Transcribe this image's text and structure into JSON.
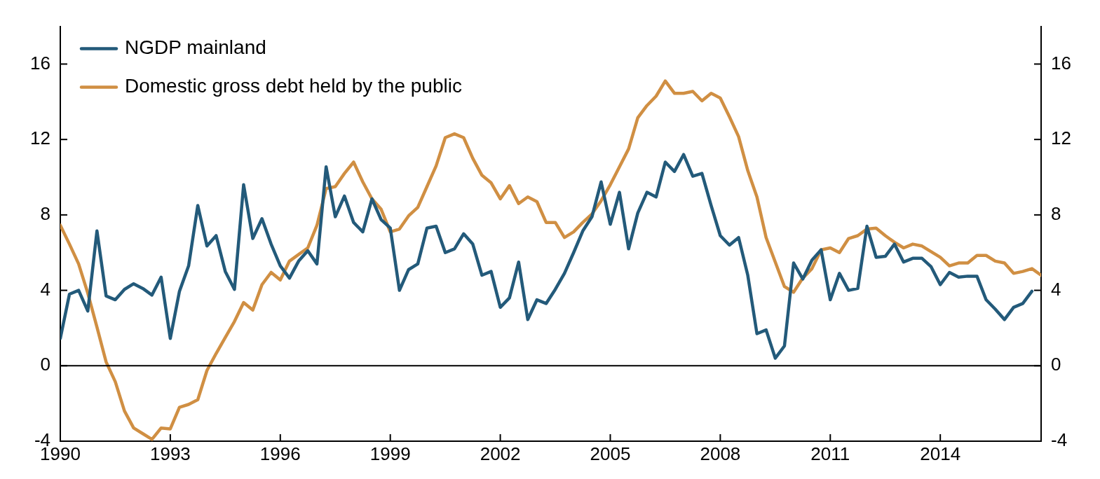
{
  "chart_data": {
    "type": "line",
    "x": [
      1990,
      1990.25,
      1990.5,
      1990.75,
      1991,
      1991.25,
      1991.5,
      1991.75,
      1992,
      1992.25,
      1992.5,
      1992.75,
      1993,
      1993.25,
      1993.5,
      1993.75,
      1994,
      1994.25,
      1994.5,
      1994.75,
      1995,
      1995.25,
      1995.5,
      1995.75,
      1996,
      1996.25,
      1996.5,
      1996.75,
      1997,
      1997.25,
      1997.5,
      1997.75,
      1998,
      1998.25,
      1998.5,
      1998.75,
      1999,
      1999.25,
      1999.5,
      1999.75,
      2000,
      2000.25,
      2000.5,
      2000.75,
      2001,
      2001.25,
      2001.5,
      2001.75,
      2002,
      2002.25,
      2002.5,
      2002.75,
      2003,
      2003.25,
      2003.5,
      2003.75,
      2004,
      2004.25,
      2004.5,
      2004.75,
      2005,
      2005.25,
      2005.5,
      2005.75,
      2006,
      2006.25,
      2006.5,
      2006.75,
      2007,
      2007.25,
      2007.5,
      2007.75,
      2008,
      2008.25,
      2008.5,
      2008.75,
      2009,
      2009.25,
      2009.5,
      2009.75,
      2010,
      2010.25,
      2010.5,
      2010.75,
      2011,
      2011.25,
      2011.5,
      2011.75,
      2012,
      2012.25,
      2012.5,
      2012.75,
      2013,
      2013.25,
      2013.5,
      2013.75,
      2014,
      2014.25,
      2014.5,
      2014.75,
      2015,
      2015.25,
      2015.5,
      2015.75,
      2016,
      2016.25,
      2016.5,
      2016.75
    ],
    "series": [
      {
        "name": "NGDP mainland",
        "color": "#235a7a",
        "values": [
          1.45,
          3.8,
          4.0,
          2.9,
          7.15,
          3.7,
          3.5,
          4.05,
          4.35,
          4.1,
          3.75,
          4.7,
          1.45,
          3.95,
          5.3,
          8.5,
          6.35,
          6.9,
          5.0,
          4.05,
          9.6,
          6.75,
          7.8,
          6.45,
          5.3,
          4.65,
          5.55,
          6.1,
          5.4,
          10.55,
          7.9,
          9.0,
          7.6,
          7.1,
          8.85,
          7.75,
          7.3,
          4.0,
          5.1,
          5.4,
          7.3,
          7.4,
          6.0,
          6.2,
          7.0,
          6.45,
          4.8,
          5.0,
          3.1,
          3.6,
          5.5,
          2.45,
          3.5,
          3.3,
          4.05,
          4.9,
          6.0,
          7.15,
          7.9,
          9.75,
          7.5,
          9.2,
          6.2,
          8.1,
          9.2,
          8.95,
          10.8,
          10.3,
          11.2,
          10.05,
          10.2,
          8.5,
          6.9,
          6.4,
          6.8,
          4.8,
          1.7,
          1.9,
          0.4,
          1.05,
          5.45,
          4.6,
          5.6,
          6.15,
          3.5,
          4.9,
          4.0,
          4.1,
          7.4,
          5.75,
          5.8,
          6.45,
          5.5,
          5.7,
          5.7,
          5.25,
          4.3,
          4.95,
          4.7,
          4.75,
          4.75,
          3.5,
          3.0,
          2.45,
          3.1,
          3.3,
          3.95,
          null
        ]
      },
      {
        "name": "Domestic gross debt held by the public",
        "color": "#d08f43",
        "values": [
          7.45,
          6.45,
          5.4,
          3.85,
          2.05,
          0.2,
          -0.85,
          -2.4,
          -3.3,
          -3.6,
          -3.9,
          -3.3,
          -3.35,
          -2.2,
          -2.05,
          -1.8,
          -0.25,
          0.65,
          1.5,
          2.35,
          3.35,
          2.95,
          4.3,
          4.95,
          4.55,
          5.55,
          5.9,
          6.25,
          7.45,
          9.4,
          9.5,
          10.2,
          10.8,
          9.75,
          8.85,
          8.3,
          7.1,
          7.25,
          7.95,
          8.4,
          9.5,
          10.6,
          12.1,
          12.3,
          12.1,
          11.0,
          10.1,
          9.7,
          8.85,
          9.55,
          8.6,
          8.95,
          8.7,
          7.6,
          7.6,
          6.8,
          7.1,
          7.6,
          8.05,
          8.75,
          9.6,
          10.55,
          11.5,
          13.15,
          13.8,
          14.3,
          15.1,
          14.45,
          14.45,
          14.55,
          14.05,
          14.45,
          14.2,
          13.2,
          12.15,
          10.35,
          8.95,
          6.8,
          5.5,
          4.2,
          3.9,
          4.65,
          5.15,
          6.15,
          6.25,
          6.0,
          6.75,
          6.9,
          7.25,
          7.3,
          6.9,
          6.55,
          6.25,
          6.45,
          6.35,
          6.05,
          5.75,
          5.3,
          5.45,
          5.45,
          5.85,
          5.85,
          5.55,
          5.45,
          4.9,
          5.0,
          5.15,
          4.8
        ]
      }
    ],
    "xlim": [
      1990,
      2016.75
    ],
    "xticks": [
      1990,
      1993,
      1996,
      1999,
      2002,
      2005,
      2008,
      2011,
      2014
    ],
    "ylim": [
      -4,
      18
    ],
    "yticks": [
      -4,
      0,
      4,
      8,
      12,
      16
    ],
    "y2lim": [
      -4,
      18
    ],
    "y2ticks": [
      -4,
      0,
      4,
      8,
      12,
      16
    ],
    "ref_lines": [
      {
        "axis": "y",
        "value": 0,
        "color": "#000000"
      }
    ],
    "legend": "top left",
    "grid": false,
    "marker": "none",
    "line_style": "solid"
  }
}
